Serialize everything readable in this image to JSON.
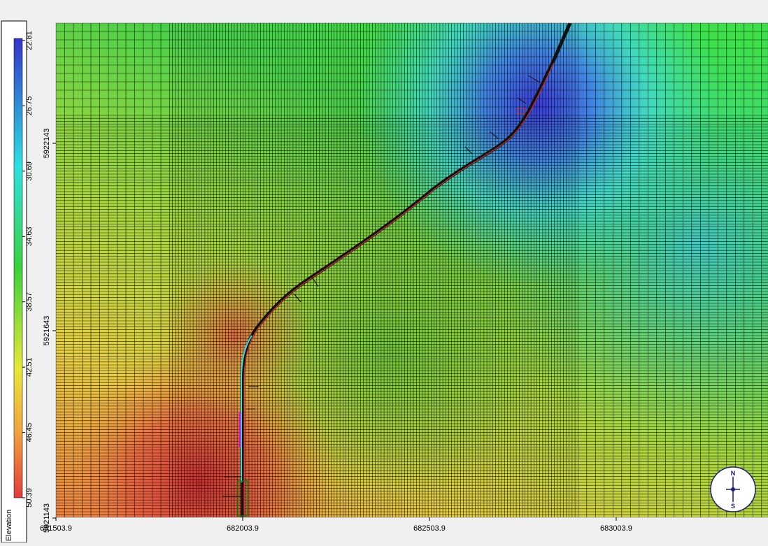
{
  "legend": {
    "title": "Elevation",
    "ticks": [
      "22.81",
      "26.75",
      "30.69",
      "34.63",
      "38.57",
      "42.51",
      "46.45",
      "50.39"
    ]
  },
  "axes": {
    "x_labels": [
      "681503.9",
      "682003.9",
      "682503.9",
      "683003.9"
    ],
    "y_labels": [
      "5922143",
      "5921643",
      "5921143"
    ]
  },
  "compass": {
    "north": "N",
    "south": "S"
  }
}
